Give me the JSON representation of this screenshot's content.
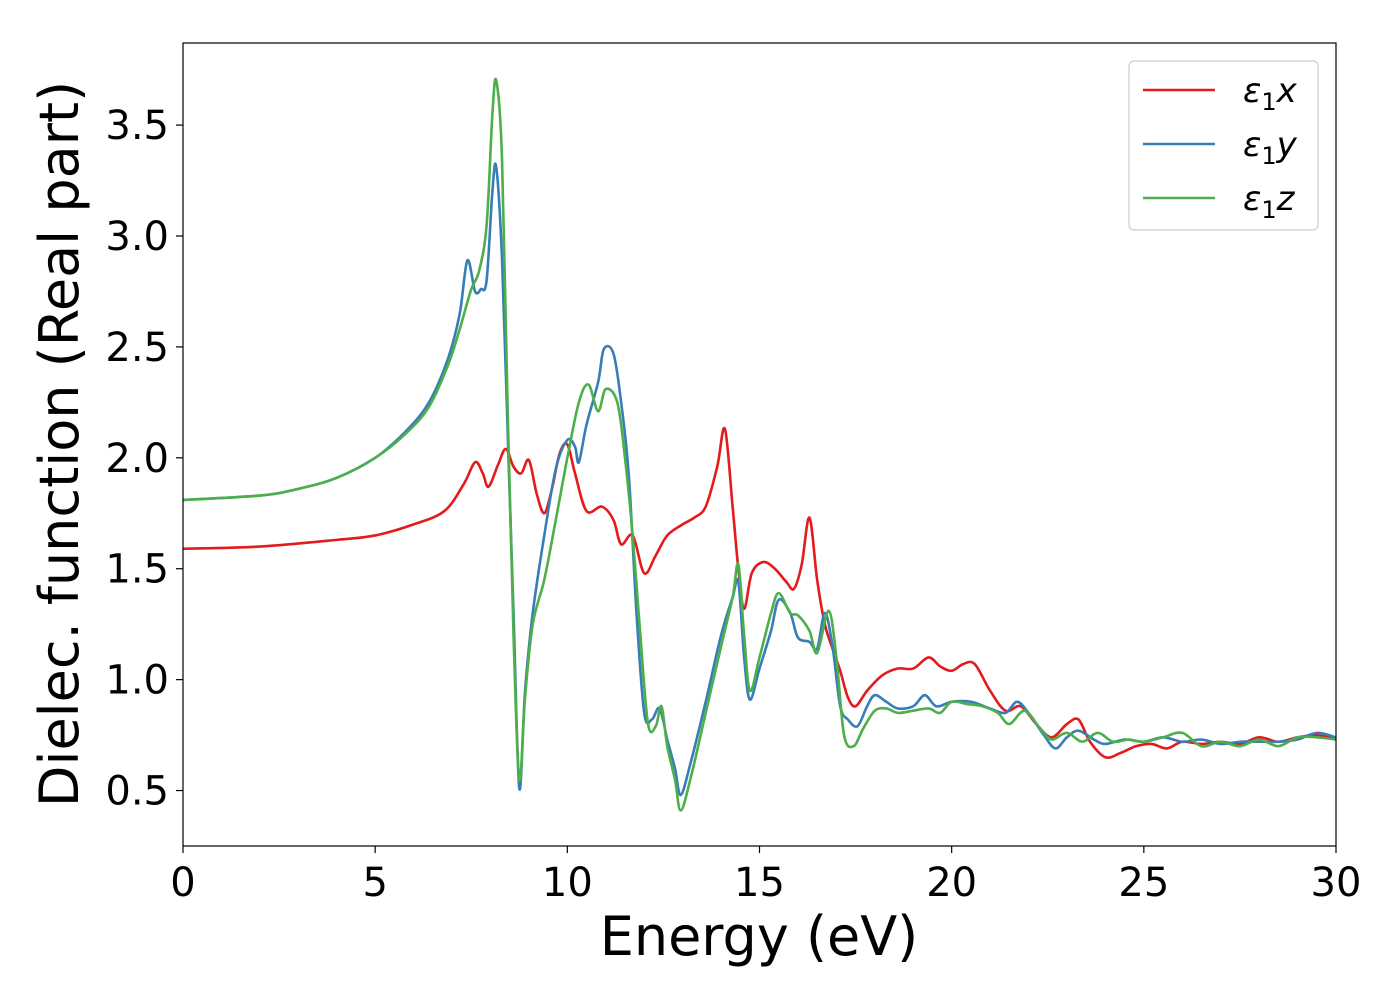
{
  "chart_data": {
    "type": "line",
    "xlabel": "Energy (eV)",
    "ylabel": "Dielec. function (Real part)",
    "xlim": [
      0,
      30
    ],
    "ylim": [
      0.25,
      3.87
    ],
    "xticks": [
      0,
      5,
      10,
      15,
      20,
      25,
      30
    ],
    "xtick_labels": [
      "0",
      "5",
      "10",
      "15",
      "20",
      "25",
      "30"
    ],
    "yticks": [
      0.5,
      1.0,
      1.5,
      2.0,
      2.5,
      3.0,
      3.5
    ],
    "ytick_labels": [
      "0.5",
      "1.0",
      "1.5",
      "2.0",
      "2.5",
      "3.0",
      "3.5"
    ],
    "grid": false,
    "legend_position": "top-right",
    "series": [
      {
        "name": "ε1x",
        "legend": {
          "symbol": "ε",
          "sub": "1",
          "suffix": "x"
        },
        "color": "#e41a1c",
        "points": [
          [
            0,
            1.59
          ],
          [
            2,
            1.6
          ],
          [
            4,
            1.63
          ],
          [
            5,
            1.65
          ],
          [
            6,
            1.7
          ],
          [
            6.8,
            1.76
          ],
          [
            7.3,
            1.88
          ],
          [
            7.6,
            1.98
          ],
          [
            7.8,
            1.93
          ],
          [
            7.95,
            1.87
          ],
          [
            8.2,
            1.97
          ],
          [
            8.4,
            2.04
          ],
          [
            8.6,
            1.96
          ],
          [
            8.8,
            1.93
          ],
          [
            9.0,
            1.99
          ],
          [
            9.2,
            1.84
          ],
          [
            9.4,
            1.75
          ],
          [
            9.6,
            1.86
          ],
          [
            9.8,
            2.02
          ],
          [
            10.0,
            2.06
          ],
          [
            10.2,
            1.93
          ],
          [
            10.5,
            1.76
          ],
          [
            10.9,
            1.78
          ],
          [
            11.2,
            1.72
          ],
          [
            11.4,
            1.61
          ],
          [
            11.7,
            1.65
          ],
          [
            12.0,
            1.48
          ],
          [
            12.3,
            1.56
          ],
          [
            12.6,
            1.65
          ],
          [
            13.0,
            1.7
          ],
          [
            13.3,
            1.73
          ],
          [
            13.6,
            1.78
          ],
          [
            13.9,
            1.96
          ],
          [
            14.1,
            2.13
          ],
          [
            14.3,
            1.78
          ],
          [
            14.45,
            1.5
          ],
          [
            14.6,
            1.32
          ],
          [
            14.8,
            1.48
          ],
          [
            15.1,
            1.53
          ],
          [
            15.4,
            1.5
          ],
          [
            15.7,
            1.44
          ],
          [
            15.9,
            1.41
          ],
          [
            16.1,
            1.52
          ],
          [
            16.3,
            1.73
          ],
          [
            16.5,
            1.45
          ],
          [
            16.7,
            1.25
          ],
          [
            16.9,
            1.14
          ],
          [
            17.1,
            1.04
          ],
          [
            17.3,
            0.92
          ],
          [
            17.5,
            0.88
          ],
          [
            17.8,
            0.95
          ],
          [
            18.2,
            1.02
          ],
          [
            18.6,
            1.05
          ],
          [
            19.0,
            1.05
          ],
          [
            19.4,
            1.1
          ],
          [
            19.7,
            1.06
          ],
          [
            20.0,
            1.04
          ],
          [
            20.3,
            1.07
          ],
          [
            20.6,
            1.07
          ],
          [
            21.0,
            0.95
          ],
          [
            21.4,
            0.86
          ],
          [
            21.8,
            0.88
          ],
          [
            22.2,
            0.8
          ],
          [
            22.6,
            0.74
          ],
          [
            23.0,
            0.8
          ],
          [
            23.3,
            0.82
          ],
          [
            23.6,
            0.72
          ],
          [
            24.0,
            0.65
          ],
          [
            24.4,
            0.67
          ],
          [
            24.8,
            0.7
          ],
          [
            25.2,
            0.71
          ],
          [
            25.6,
            0.69
          ],
          [
            26.0,
            0.72
          ],
          [
            26.5,
            0.71
          ],
          [
            27.0,
            0.72
          ],
          [
            27.5,
            0.71
          ],
          [
            28.0,
            0.74
          ],
          [
            28.5,
            0.72
          ],
          [
            29.0,
            0.74
          ],
          [
            29.5,
            0.75
          ],
          [
            30,
            0.73
          ]
        ]
      },
      {
        "name": "ε1y",
        "legend": {
          "symbol": "ε",
          "sub": "1",
          "suffix": "y"
        },
        "color": "#377eb8",
        "points": [
          [
            0,
            1.81
          ],
          [
            2,
            1.83
          ],
          [
            3,
            1.86
          ],
          [
            4,
            1.91
          ],
          [
            5,
            2.0
          ],
          [
            5.8,
            2.12
          ],
          [
            6.4,
            2.25
          ],
          [
            6.9,
            2.45
          ],
          [
            7.2,
            2.65
          ],
          [
            7.4,
            2.89
          ],
          [
            7.6,
            2.75
          ],
          [
            7.75,
            2.76
          ],
          [
            7.9,
            2.8
          ],
          [
            8.05,
            3.2
          ],
          [
            8.15,
            3.31
          ],
          [
            8.3,
            2.9
          ],
          [
            8.45,
            2.1
          ],
          [
            8.6,
            1.3
          ],
          [
            8.75,
            0.51
          ],
          [
            8.9,
            0.95
          ],
          [
            9.1,
            1.3
          ],
          [
            9.4,
            1.65
          ],
          [
            9.7,
            1.95
          ],
          [
            10.0,
            2.08
          ],
          [
            10.2,
            2.05
          ],
          [
            10.3,
            1.98
          ],
          [
            10.5,
            2.15
          ],
          [
            10.8,
            2.34
          ],
          [
            10.95,
            2.49
          ],
          [
            11.2,
            2.47
          ],
          [
            11.4,
            2.25
          ],
          [
            11.6,
            1.92
          ],
          [
            11.8,
            1.3
          ],
          [
            12.0,
            0.85
          ],
          [
            12.2,
            0.82
          ],
          [
            12.4,
            0.87
          ],
          [
            12.6,
            0.73
          ],
          [
            12.8,
            0.6
          ],
          [
            12.95,
            0.48
          ],
          [
            13.2,
            0.62
          ],
          [
            13.6,
            0.9
          ],
          [
            14.0,
            1.2
          ],
          [
            14.3,
            1.37
          ],
          [
            14.45,
            1.44
          ],
          [
            14.6,
            1.1
          ],
          [
            14.75,
            0.91
          ],
          [
            15.0,
            1.05
          ],
          [
            15.3,
            1.22
          ],
          [
            15.5,
            1.36
          ],
          [
            15.8,
            1.3
          ],
          [
            16.0,
            1.19
          ],
          [
            16.3,
            1.17
          ],
          [
            16.5,
            1.14
          ],
          [
            16.7,
            1.3
          ],
          [
            16.9,
            1.15
          ],
          [
            17.1,
            0.88
          ],
          [
            17.3,
            0.82
          ],
          [
            17.55,
            0.79
          ],
          [
            17.8,
            0.88
          ],
          [
            18.0,
            0.93
          ],
          [
            18.3,
            0.9
          ],
          [
            18.6,
            0.87
          ],
          [
            19.0,
            0.88
          ],
          [
            19.3,
            0.93
          ],
          [
            19.6,
            0.88
          ],
          [
            20.0,
            0.9
          ],
          [
            20.5,
            0.9
          ],
          [
            21.0,
            0.87
          ],
          [
            21.4,
            0.85
          ],
          [
            21.7,
            0.9
          ],
          [
            22.0,
            0.85
          ],
          [
            22.4,
            0.75
          ],
          [
            22.7,
            0.69
          ],
          [
            23.0,
            0.74
          ],
          [
            23.3,
            0.77
          ],
          [
            23.7,
            0.73
          ],
          [
            24.0,
            0.71
          ],
          [
            24.5,
            0.73
          ],
          [
            25.0,
            0.72
          ],
          [
            25.5,
            0.74
          ],
          [
            26.0,
            0.72
          ],
          [
            26.5,
            0.73
          ],
          [
            27.0,
            0.71
          ],
          [
            27.5,
            0.72
          ],
          [
            28.0,
            0.72
          ],
          [
            28.5,
            0.72
          ],
          [
            29.0,
            0.73
          ],
          [
            29.5,
            0.76
          ],
          [
            30,
            0.74
          ]
        ]
      },
      {
        "name": "ε1z",
        "legend": {
          "symbol": "ε",
          "sub": "1",
          "suffix": "z"
        },
        "color": "#4daf4a",
        "points": [
          [
            0,
            1.81
          ],
          [
            2,
            1.83
          ],
          [
            3,
            1.86
          ],
          [
            4,
            1.91
          ],
          [
            5,
            2.0
          ],
          [
            5.8,
            2.11
          ],
          [
            6.4,
            2.23
          ],
          [
            6.9,
            2.42
          ],
          [
            7.2,
            2.58
          ],
          [
            7.5,
            2.76
          ],
          [
            7.7,
            2.84
          ],
          [
            7.9,
            3.05
          ],
          [
            8.05,
            3.55
          ],
          [
            8.15,
            3.7
          ],
          [
            8.3,
            3.35
          ],
          [
            8.45,
            2.2
          ],
          [
            8.6,
            1.2
          ],
          [
            8.75,
            0.55
          ],
          [
            8.9,
            0.92
          ],
          [
            9.1,
            1.25
          ],
          [
            9.4,
            1.45
          ],
          [
            9.7,
            1.72
          ],
          [
            10.0,
            2.0
          ],
          [
            10.3,
            2.25
          ],
          [
            10.55,
            2.33
          ],
          [
            10.8,
            2.21
          ],
          [
            11.0,
            2.31
          ],
          [
            11.3,
            2.25
          ],
          [
            11.5,
            2.0
          ],
          [
            11.7,
            1.65
          ],
          [
            11.9,
            1.2
          ],
          [
            12.1,
            0.8
          ],
          [
            12.3,
            0.79
          ],
          [
            12.45,
            0.88
          ],
          [
            12.6,
            0.7
          ],
          [
            12.8,
            0.55
          ],
          [
            12.95,
            0.41
          ],
          [
            13.2,
            0.55
          ],
          [
            13.6,
            0.85
          ],
          [
            14.0,
            1.15
          ],
          [
            14.3,
            1.37
          ],
          [
            14.45,
            1.52
          ],
          [
            14.6,
            1.2
          ],
          [
            14.75,
            0.95
          ],
          [
            15.0,
            1.1
          ],
          [
            15.3,
            1.3
          ],
          [
            15.5,
            1.39
          ],
          [
            15.8,
            1.3
          ],
          [
            16.0,
            1.29
          ],
          [
            16.3,
            1.22
          ],
          [
            16.5,
            1.12
          ],
          [
            16.8,
            1.31
          ],
          [
            17.0,
            1.1
          ],
          [
            17.2,
            0.75
          ],
          [
            17.45,
            0.7
          ],
          [
            17.7,
            0.78
          ],
          [
            18.0,
            0.86
          ],
          [
            18.3,
            0.87
          ],
          [
            18.6,
            0.85
          ],
          [
            19.0,
            0.86
          ],
          [
            19.4,
            0.87
          ],
          [
            19.7,
            0.85
          ],
          [
            20.0,
            0.9
          ],
          [
            20.4,
            0.89
          ],
          [
            20.8,
            0.88
          ],
          [
            21.2,
            0.85
          ],
          [
            21.5,
            0.8
          ],
          [
            21.9,
            0.86
          ],
          [
            22.3,
            0.78
          ],
          [
            22.6,
            0.73
          ],
          [
            23.0,
            0.76
          ],
          [
            23.4,
            0.72
          ],
          [
            23.8,
            0.76
          ],
          [
            24.2,
            0.72
          ],
          [
            24.6,
            0.73
          ],
          [
            25.0,
            0.72
          ],
          [
            25.5,
            0.74
          ],
          [
            26.0,
            0.76
          ],
          [
            26.5,
            0.7
          ],
          [
            27.0,
            0.72
          ],
          [
            27.5,
            0.7
          ],
          [
            28.0,
            0.73
          ],
          [
            28.5,
            0.7
          ],
          [
            29.0,
            0.74
          ],
          [
            29.5,
            0.74
          ],
          [
            30,
            0.73
          ]
        ]
      }
    ]
  }
}
